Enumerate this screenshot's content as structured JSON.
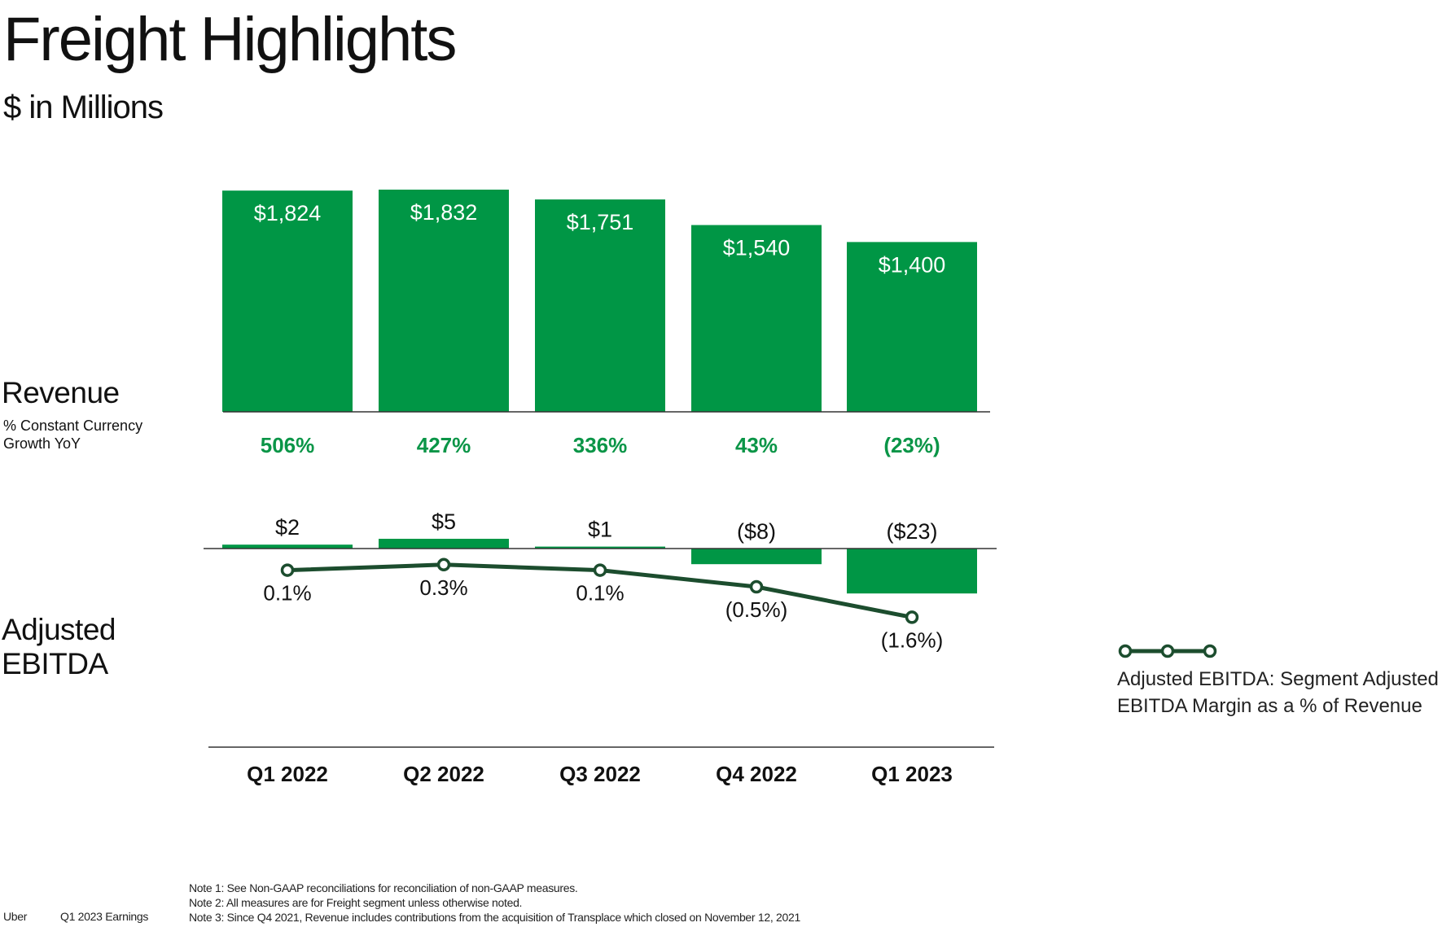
{
  "title": "Freight Highlights",
  "subtitle": "$ in Millions",
  "revenue_section": {
    "label": "Revenue",
    "sublabel_lines": [
      "% Constant Currency",
      "Growth YoY"
    ]
  },
  "ebitda_section": {
    "label_lines": [
      "Adjusted",
      "EBITDA"
    ]
  },
  "legend": {
    "lines": [
      "Adjusted EBITDA: Segment Adjusted",
      "EBITDA Margin as a % of Revenue"
    ]
  },
  "footer": {
    "brand": "Uber",
    "report": "Q1 2023 Earnings",
    "notes": [
      "Note 1: See Non-GAAP reconciliations for reconciliation of non-GAAP measures.",
      "Note 2: All measures are for Freight segment unless otherwise noted.",
      "Note 3: Since Q4 2021, Revenue includes contributions from the acquisition of Transplace which closed on November 12, 2021"
    ]
  },
  "colors": {
    "bar_green": "#009645",
    "growth_green": "#0a9547",
    "line_dark": "#1c4d2e",
    "axis": "#333333"
  },
  "chart_data": [
    {
      "type": "bar",
      "categories": [
        "Q1 2022",
        "Q2 2022",
        "Q3 2022",
        "Q4 2022",
        "Q1 2023"
      ],
      "values": [
        1824,
        1832,
        1751,
        1540,
        1400
      ],
      "value_labels": [
        "$1,824",
        "$1,832",
        "$1,751",
        "$1,540",
        "$1,400"
      ],
      "growth_labels": [
        "506%",
        "427%",
        "336%",
        "43%",
        "(23%)"
      ]
    },
    {
      "type": "bar",
      "categories": [
        "Q1 2022",
        "Q2 2022",
        "Q3 2022",
        "Q4 2022",
        "Q1 2023"
      ],
      "values": [
        2,
        5,
        1,
        -8,
        -23
      ],
      "value_labels": [
        "$2",
        "$5",
        "$1",
        "($8)",
        "($23)"
      ],
      "margin_series": {
        "type": "line",
        "values": [
          0.1,
          0.3,
          0.1,
          -0.5,
          -1.6
        ],
        "labels": [
          "0.1%",
          "0.3%",
          "0.1%",
          "(0.5%)",
          "(1.6%)"
        ]
      }
    }
  ]
}
